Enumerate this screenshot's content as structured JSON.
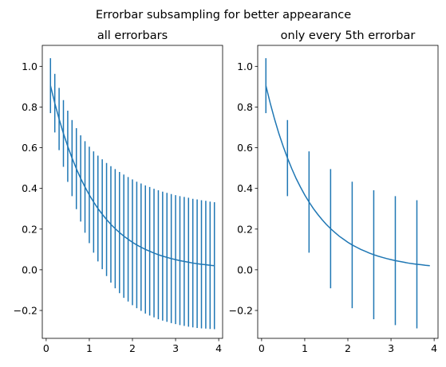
{
  "figure": {
    "suptitle": "Errorbar subsampling for better appearance"
  },
  "colors": {
    "series": "#1f77b4",
    "axes": "#000000",
    "background": "#ffffff"
  },
  "chart_data": [
    {
      "type": "line",
      "title": "all errorbars",
      "xlabel": "",
      "ylabel": "",
      "xlim": [
        -0.09,
        4.09
      ],
      "ylim": [
        -0.337,
        1.103
      ],
      "x_ticks": [
        0,
        1,
        2,
        3,
        4
      ],
      "y_ticks": [
        -0.2,
        0.0,
        0.2,
        0.4,
        0.6,
        0.8,
        1.0
      ],
      "x_tick_labels": [
        "0",
        "1",
        "2",
        "3",
        "4"
      ],
      "y_tick_labels": [
        "−0.2",
        "0.0",
        "0.2",
        "0.4",
        "0.6",
        "0.8",
        "1.0"
      ],
      "grid": false,
      "legend": "none",
      "errorbar_every": 1,
      "series": [
        {
          "x": [
            0.1,
            0.2,
            0.3,
            0.4,
            0.5,
            0.6,
            0.7,
            0.8,
            0.9,
            1.0,
            1.1,
            1.2,
            1.3,
            1.4,
            1.5,
            1.6,
            1.7,
            1.8,
            1.9,
            2.0,
            2.1,
            2.2,
            2.3,
            2.4,
            2.5,
            2.6,
            2.7,
            2.8,
            2.9,
            3.0,
            3.1,
            3.2,
            3.3,
            3.4,
            3.5,
            3.6,
            3.7,
            3.8,
            3.9
          ],
          "y": [
            0.905,
            0.819,
            0.741,
            0.67,
            0.607,
            0.549,
            0.497,
            0.449,
            0.407,
            0.368,
            0.333,
            0.301,
            0.273,
            0.247,
            0.223,
            0.202,
            0.183,
            0.165,
            0.15,
            0.135,
            0.122,
            0.111,
            0.1,
            0.091,
            0.082,
            0.074,
            0.067,
            0.061,
            0.055,
            0.05,
            0.045,
            0.041,
            0.037,
            0.033,
            0.03,
            0.027,
            0.025,
            0.022,
            0.02
          ],
          "yerr": [
            0.135,
            0.144,
            0.153,
            0.164,
            0.175,
            0.187,
            0.199,
            0.212,
            0.225,
            0.237,
            0.249,
            0.26,
            0.27,
            0.278,
            0.286,
            0.293,
            0.298,
            0.303,
            0.306,
            0.309,
            0.311,
            0.313,
            0.315,
            0.316,
            0.316,
            0.317,
            0.317,
            0.317,
            0.317,
            0.317,
            0.317,
            0.317,
            0.317,
            0.316,
            0.316,
            0.315,
            0.314,
            0.313,
            0.312
          ]
        }
      ]
    },
    {
      "type": "line",
      "title": "only every 5th errorbar",
      "xlabel": "",
      "ylabel": "",
      "xlim": [
        -0.09,
        4.09
      ],
      "ylim": [
        -0.337,
        1.103
      ],
      "x_ticks": [
        0,
        1,
        2,
        3,
        4
      ],
      "y_ticks": [
        -0.2,
        0.0,
        0.2,
        0.4,
        0.6,
        0.8,
        1.0
      ],
      "x_tick_labels": [
        "0",
        "1",
        "2",
        "3",
        "4"
      ],
      "y_tick_labels": [
        "−0.2",
        "0.0",
        "0.2",
        "0.4",
        "0.6",
        "0.8",
        "1.0"
      ],
      "grid": false,
      "legend": "none",
      "errorbar_every": 5,
      "series": [
        {
          "x": [
            0.1,
            0.2,
            0.3,
            0.4,
            0.5,
            0.6,
            0.7,
            0.8,
            0.9,
            1.0,
            1.1,
            1.2,
            1.3,
            1.4,
            1.5,
            1.6,
            1.7,
            1.8,
            1.9,
            2.0,
            2.1,
            2.2,
            2.3,
            2.4,
            2.5,
            2.6,
            2.7,
            2.8,
            2.9,
            3.0,
            3.1,
            3.2,
            3.3,
            3.4,
            3.5,
            3.6,
            3.7,
            3.8,
            3.9
          ],
          "y": [
            0.905,
            0.819,
            0.741,
            0.67,
            0.607,
            0.549,
            0.497,
            0.449,
            0.407,
            0.368,
            0.333,
            0.301,
            0.273,
            0.247,
            0.223,
            0.202,
            0.183,
            0.165,
            0.15,
            0.135,
            0.122,
            0.111,
            0.1,
            0.091,
            0.082,
            0.074,
            0.067,
            0.061,
            0.055,
            0.05,
            0.045,
            0.041,
            0.037,
            0.033,
            0.03,
            0.027,
            0.025,
            0.022,
            0.02
          ],
          "yerr": [
            0.135,
            0.144,
            0.153,
            0.164,
            0.175,
            0.187,
            0.199,
            0.212,
            0.225,
            0.237,
            0.249,
            0.26,
            0.27,
            0.278,
            0.286,
            0.293,
            0.298,
            0.303,
            0.306,
            0.309,
            0.311,
            0.313,
            0.315,
            0.316,
            0.316,
            0.317,
            0.317,
            0.317,
            0.317,
            0.317,
            0.317,
            0.317,
            0.317,
            0.316,
            0.316,
            0.315,
            0.314,
            0.313,
            0.312
          ]
        }
      ]
    }
  ]
}
